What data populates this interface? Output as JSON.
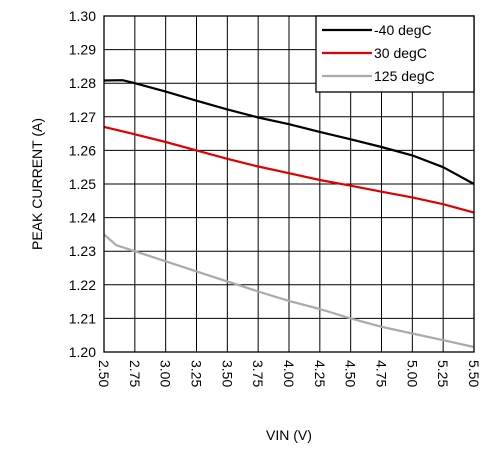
{
  "chart_data": {
    "type": "line",
    "title": "",
    "xlabel": "VIN (V)",
    "ylabel": "PEAK CURRENT (A)",
    "xlim": [
      2.5,
      5.5
    ],
    "ylim": [
      1.2,
      1.3
    ],
    "xticks": [
      "2.50",
      "2.75",
      "3.00",
      "3.25",
      "3.50",
      "3.75",
      "4.00",
      "4.25",
      "4.50",
      "4.75",
      "5.00",
      "5.25",
      "5.50"
    ],
    "yticks": [
      "1.20",
      "1.21",
      "1.22",
      "1.23",
      "1.24",
      "1.25",
      "1.26",
      "1.27",
      "1.28",
      "1.29",
      "1.30"
    ],
    "grid": true,
    "legend_position": "top-right",
    "series": [
      {
        "name": "-40 degC",
        "color": "#000000",
        "points": [
          [
            2.5,
            1.2808
          ],
          [
            2.65,
            1.2809
          ],
          [
            2.75,
            1.28
          ],
          [
            3.0,
            1.2775
          ],
          [
            3.25,
            1.2748
          ],
          [
            3.5,
            1.2722
          ],
          [
            3.75,
            1.2698
          ],
          [
            4.0,
            1.2678
          ],
          [
            4.25,
            1.2655
          ],
          [
            4.5,
            1.2633
          ],
          [
            4.75,
            1.261
          ],
          [
            5.0,
            1.2585
          ],
          [
            5.25,
            1.255
          ],
          [
            5.5,
            1.25
          ]
        ]
      },
      {
        "name": "30 degC",
        "color": "#e00000",
        "points": [
          [
            2.5,
            1.267
          ],
          [
            2.75,
            1.2648
          ],
          [
            3.0,
            1.2625
          ],
          [
            3.25,
            1.26
          ],
          [
            3.5,
            1.2575
          ],
          [
            3.75,
            1.2552
          ],
          [
            4.0,
            1.2532
          ],
          [
            4.25,
            1.2512
          ],
          [
            4.5,
            1.2495
          ],
          [
            4.75,
            1.2477
          ],
          [
            5.0,
            1.246
          ],
          [
            5.25,
            1.244
          ],
          [
            5.5,
            1.2415
          ]
        ]
      },
      {
        "name": "125 degC",
        "color": "#aaaaaa",
        "points": [
          [
            2.5,
            1.235
          ],
          [
            2.6,
            1.2318
          ],
          [
            2.75,
            1.23
          ],
          [
            3.0,
            1.227
          ],
          [
            3.25,
            1.224
          ],
          [
            3.5,
            1.221
          ],
          [
            3.75,
            1.218
          ],
          [
            4.0,
            1.2152
          ],
          [
            4.25,
            1.2128
          ],
          [
            4.5,
            1.21
          ],
          [
            4.75,
            1.2075
          ],
          [
            5.0,
            1.2055
          ],
          [
            5.25,
            1.2035
          ],
          [
            5.5,
            1.2015
          ]
        ]
      }
    ]
  }
}
